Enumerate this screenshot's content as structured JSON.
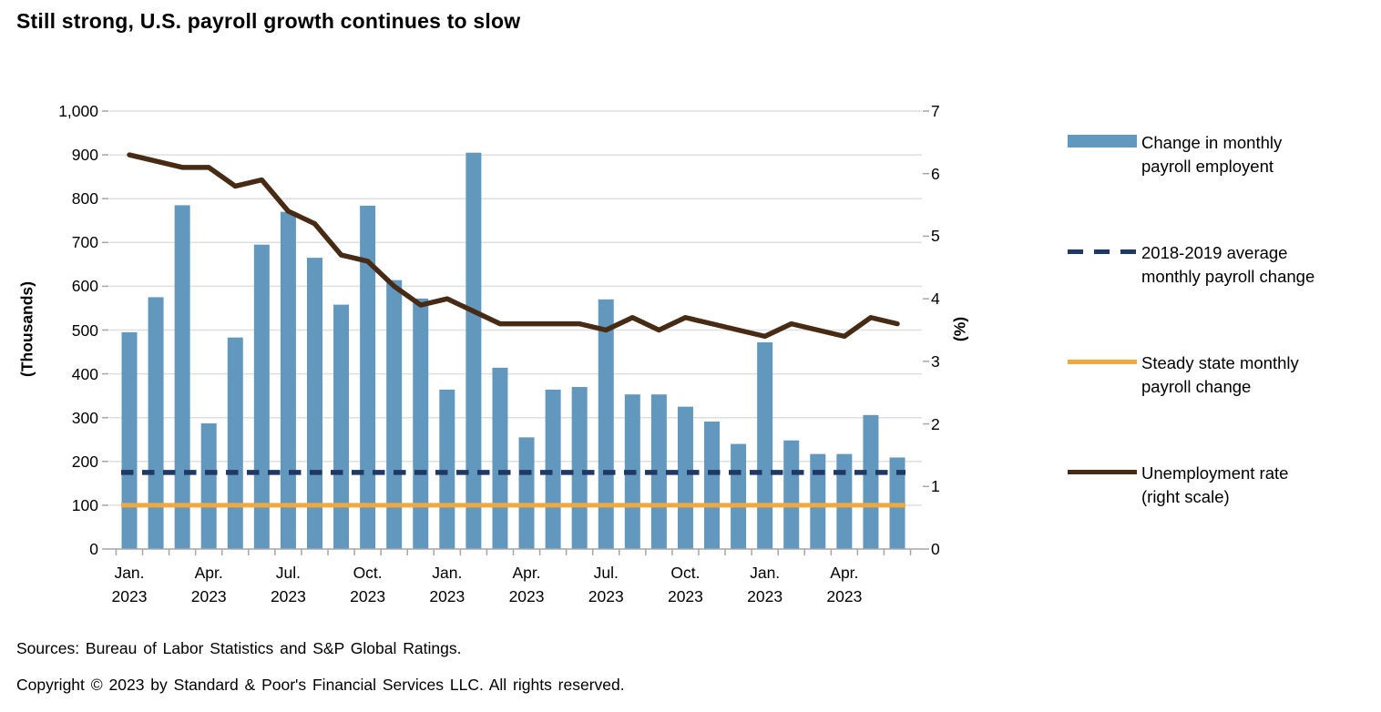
{
  "title": "Still strong, U.S. payroll growth continues to slow",
  "footer": {
    "sources": "Sources: Bureau of Labor Statistics and S&P Global Ratings.",
    "copyright": "Copyright © 2023 by Standard & Poor's Financial Services LLC. All rights reserved."
  },
  "colors": {
    "bar": "#6297BE",
    "average_line": "#1F3864",
    "steady_state_line": "#F2A83D",
    "unemployment_line": "#472B15",
    "gridline": "#DFDFDF",
    "axis": "#A6A6A6"
  },
  "chart_data": {
    "type": "bar",
    "title": "Still strong, U.S. payroll growth continues to slow",
    "left_axis": {
      "label": "(Thousands)",
      "min": 0,
      "max": 1000,
      "step": 100,
      "tick_labels": [
        "1,000",
        "900",
        "800",
        "700",
        "600",
        "500",
        "400",
        "300",
        "200",
        "100",
        "0"
      ]
    },
    "right_axis": {
      "label": "(%)",
      "min": 0,
      "max": 7,
      "step": 1,
      "tick_labels": [
        "7",
        "6",
        "5",
        "4",
        "3",
        "2",
        "1",
        "0"
      ]
    },
    "x_tick_labels": [
      {
        "month": "Jan.",
        "year": "2023"
      },
      {
        "month": "Apr.",
        "year": "2023"
      },
      {
        "month": "Jul.",
        "year": "2023"
      },
      {
        "month": "Oct.",
        "year": "2023"
      },
      {
        "month": "Jan.",
        "year": "2023"
      },
      {
        "month": "Apr.",
        "year": "2023"
      },
      {
        "month": "Jul.",
        "year": "2023"
      },
      {
        "month": "Oct.",
        "year": "2023"
      },
      {
        "month": "Jan.",
        "year": "2023"
      },
      {
        "month": "Apr.",
        "year": "2023"
      }
    ],
    "series": [
      {
        "name": "Change in monthly payroll employent",
        "type": "bar",
        "axis": "left",
        "values": [
          495,
          575,
          785,
          287,
          483,
          695,
          770,
          665,
          558,
          784,
          614,
          572,
          364,
          905,
          414,
          255,
          364,
          370,
          570,
          353,
          353,
          325,
          291,
          240,
          472,
          248,
          217,
          217,
          306,
          209
        ]
      },
      {
        "name": "2018-2019 average monthly payroll change",
        "type": "dashed-line",
        "axis": "left",
        "constant_value": 175
      },
      {
        "name": "Steady state monthly payroll change",
        "type": "line",
        "axis": "left",
        "constant_value": 100
      },
      {
        "name": "Unemployment rate (right scale)",
        "type": "line",
        "axis": "right",
        "values": [
          6.3,
          6.2,
          6.1,
          6.1,
          5.8,
          5.9,
          5.4,
          5.2,
          4.7,
          4.6,
          4.2,
          3.9,
          4.0,
          3.8,
          3.6,
          3.6,
          3.6,
          3.6,
          3.5,
          3.7,
          3.5,
          3.7,
          3.6,
          3.5,
          3.4,
          3.6,
          3.5,
          3.4,
          3.7,
          3.6
        ]
      }
    ],
    "legend": [
      {
        "line1": "Change in monthly",
        "line2": "payroll employent",
        "swatch": "bar"
      },
      {
        "line1": "2018-2019 average",
        "line2": "monthly payroll change",
        "swatch": "dashed-line"
      },
      {
        "line1": "Steady state monthly",
        "line2": "payroll change",
        "swatch": "orange-line"
      },
      {
        "line1": "Unemployment rate",
        "line2": "(right scale)",
        "swatch": "brown-line"
      }
    ],
    "grid": true,
    "legend_position": "right"
  }
}
